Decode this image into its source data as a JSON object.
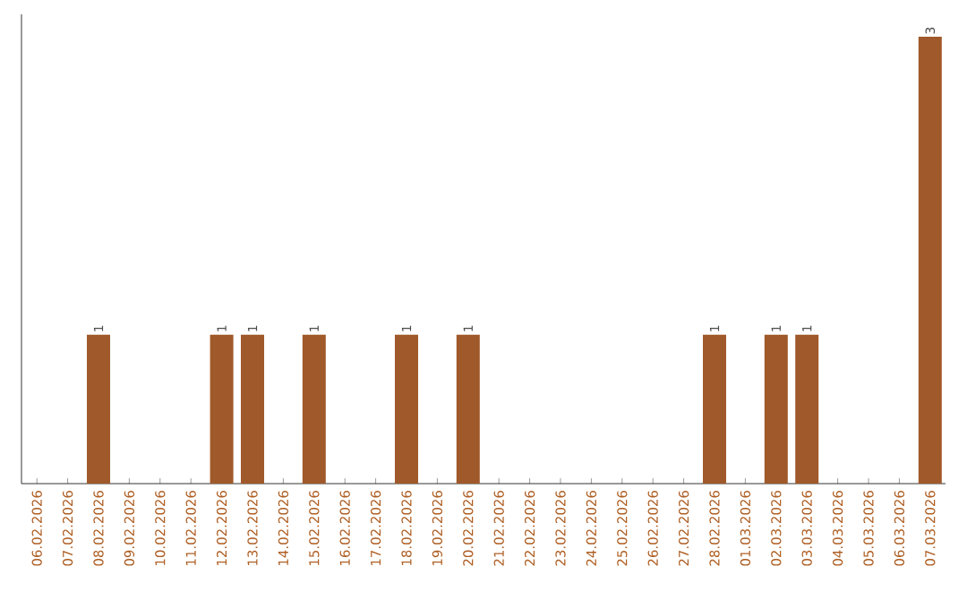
{
  "chart_data": {
    "type": "bar",
    "color": "#a0592a",
    "categories": [
      "06.02.2026",
      "07.02.2026",
      "08.02.2026",
      "09.02.2026",
      "10.02.2026",
      "11.02.2026",
      "12.02.2026",
      "13.02.2026",
      "14.02.2026",
      "15.02.2026",
      "16.02.2026",
      "17.02.2026",
      "18.02.2026",
      "19.02.2026",
      "20.02.2026",
      "21.02.2026",
      "22.02.2026",
      "23.02.2026",
      "24.02.2026",
      "25.02.2026",
      "26.02.2026",
      "27.02.2026",
      "28.02.2026",
      "01.03.2026",
      "02.03.2026",
      "03.03.2026",
      "04.03.2026",
      "05.03.2026",
      "06.03.2026",
      "07.03.2026"
    ],
    "values": [
      0,
      0,
      1,
      0,
      0,
      0,
      1,
      1,
      0,
      1,
      0,
      0,
      1,
      0,
      1,
      0,
      0,
      0,
      0,
      0,
      0,
      0,
      1,
      0,
      1,
      1,
      0,
      0,
      0,
      3
    ],
    "value_labels": [
      null,
      null,
      "1",
      null,
      null,
      null,
      "1",
      "1",
      null,
      "1",
      null,
      null,
      "1",
      null,
      "1",
      null,
      null,
      null,
      null,
      null,
      null,
      null,
      "1",
      null,
      "1",
      "1",
      null,
      null,
      null,
      "3"
    ],
    "tick_labels": "x"
  }
}
